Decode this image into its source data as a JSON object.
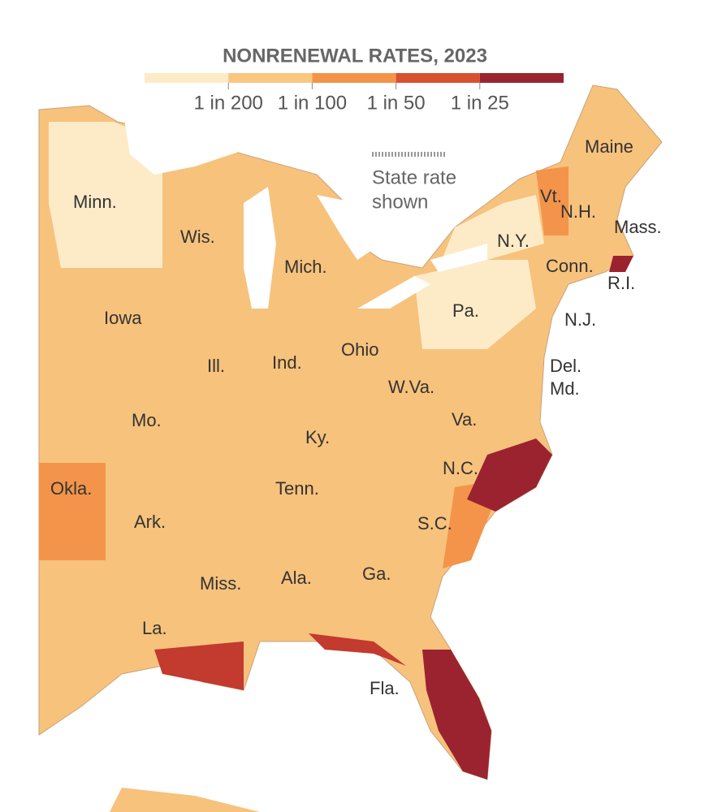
{
  "legend": {
    "title": "NONRENEWAL RATES, 2023",
    "colors": [
      "#fdebc8",
      "#f9c77e",
      "#f3944a",
      "#d9502f",
      "#9b2330"
    ],
    "labels": [
      "1 in 200",
      "1 in 100",
      "1 in 50",
      "1 in 25"
    ]
  },
  "annotation": {
    "lines": [
      "State rate",
      "shown"
    ]
  },
  "states": [
    {
      "label": "Minn."
    },
    {
      "label": "Wis."
    },
    {
      "label": "Mich."
    },
    {
      "label": "Iowa"
    },
    {
      "label": "Ill."
    },
    {
      "label": "Ind."
    },
    {
      "label": "Ohio"
    },
    {
      "label": "Pa."
    },
    {
      "label": "N.Y."
    },
    {
      "label": "Maine"
    },
    {
      "label": "Vt."
    },
    {
      "label": "N.H."
    },
    {
      "label": "Mass."
    },
    {
      "label": "Conn."
    },
    {
      "label": "R.I."
    },
    {
      "label": "N.J."
    },
    {
      "label": "Del."
    },
    {
      "label": "Md."
    },
    {
      "label": "W.Va."
    },
    {
      "label": "Va."
    },
    {
      "label": "Ky."
    },
    {
      "label": "Mo."
    },
    {
      "label": "Okla."
    },
    {
      "label": "Ark."
    },
    {
      "label": "Tenn."
    },
    {
      "label": "N.C."
    },
    {
      "label": "S.C."
    },
    {
      "label": "Ga."
    },
    {
      "label": "Ala."
    },
    {
      "label": "Miss."
    },
    {
      "label": "La."
    },
    {
      "label": "Fla."
    }
  ]
}
